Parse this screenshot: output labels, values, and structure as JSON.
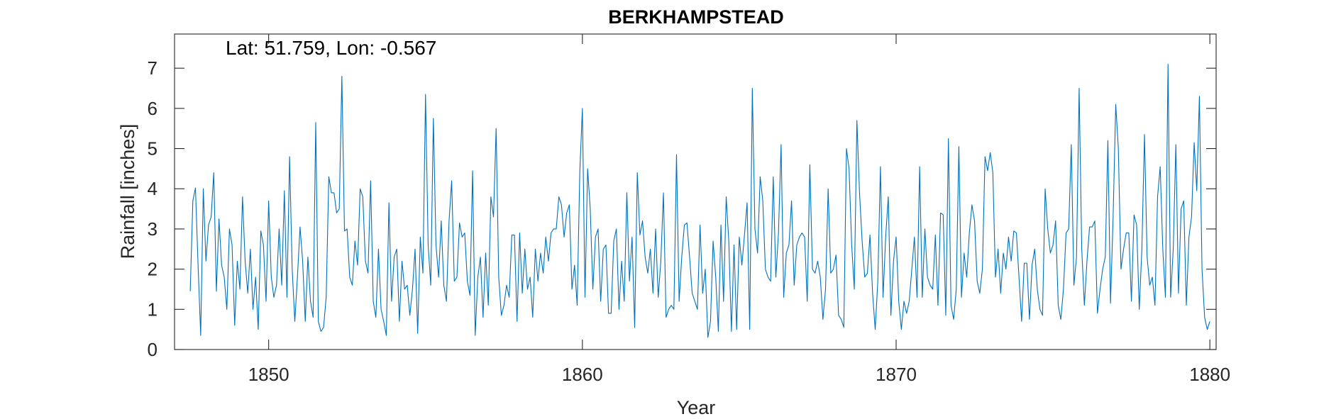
{
  "chart_data": {
    "type": "line",
    "title": "BERKHAMPSTEAD",
    "annotation": "Lat: 51.759, Lon: -0.567",
    "xlabel": "Year",
    "ylabel": "Rainfall [inches]",
    "xlim": [
      1847,
      1880.2
    ],
    "ylim": [
      0,
      7.85
    ],
    "xticks": [
      1850,
      1860,
      1870,
      1880
    ],
    "yticks": [
      0,
      1,
      2,
      3,
      4,
      5,
      6,
      7
    ],
    "grid": false,
    "legend": "none",
    "line_color": "#0072BD",
    "series": [
      {
        "x_start": 1847.5,
        "x_step": 0.0833333,
        "values": [
          1.45,
          3.7,
          4.02,
          2.1,
          0.35,
          4.0,
          2.2,
          3.1,
          3.3,
          4.4,
          1.45,
          3.25,
          2.1,
          1.8,
          1.0,
          3.0,
          2.6,
          0.6,
          2.2,
          1.5,
          3.8,
          2.2,
          1.4,
          2.5,
          1.0,
          1.8,
          0.5,
          2.95,
          2.6,
          1.2,
          3.7,
          1.8,
          1.3,
          1.6,
          3.0,
          1.6,
          3.95,
          1.3,
          4.8,
          2.0,
          0.7,
          1.8,
          3.05,
          2.2,
          0.7,
          2.3,
          1.2,
          0.8,
          5.65,
          0.7,
          0.45,
          0.55,
          1.3,
          4.3,
          3.9,
          3.9,
          3.4,
          3.5,
          6.8,
          2.95,
          3.0,
          1.8,
          1.6,
          2.7,
          2.1,
          4.0,
          3.8,
          2.2,
          1.9,
          4.2,
          1.2,
          0.8,
          2.5,
          1.0,
          0.7,
          0.35,
          3.65,
          1.2,
          2.3,
          2.5,
          0.7,
          2.2,
          1.5,
          1.6,
          0.85,
          1.5,
          2.5,
          0.4,
          2.8,
          1.9,
          6.35,
          2.6,
          1.6,
          5.75,
          2.6,
          1.8,
          3.2,
          1.6,
          1.2,
          3.2,
          4.2,
          1.7,
          1.8,
          3.15,
          2.8,
          2.9,
          1.7,
          1.35,
          4.45,
          0.35,
          1.8,
          2.3,
          0.8,
          2.4,
          1.1,
          3.8,
          3.3,
          5.5,
          1.8,
          0.85,
          1.1,
          1.6,
          1.3,
          2.85,
          2.85,
          0.7,
          2.9,
          1.4,
          2.5,
          1.5,
          1.8,
          0.8,
          2.5,
          1.7,
          2.4,
          1.9,
          2.8,
          2.2,
          2.9,
          3.0,
          3.0,
          3.8,
          3.6,
          2.8,
          3.4,
          3.6,
          1.5,
          2.1,
          1.1,
          4.4,
          6.0,
          1.3,
          4.5,
          3.5,
          1.5,
          2.8,
          3.0,
          1.2,
          2.5,
          2.6,
          0.9,
          0.9,
          2.7,
          3.0,
          1.0,
          2.2,
          1.2,
          3.9,
          1.7,
          2.8,
          0.55,
          4.4,
          2.85,
          3.2,
          2.3,
          1.9,
          2.5,
          1.4,
          3.0,
          1.3,
          2.2,
          3.9,
          0.8,
          1.0,
          1.1,
          1.0,
          4.85,
          1.2,
          2.3,
          3.1,
          3.15,
          2.3,
          1.4,
          1.2,
          1.0,
          3.1,
          1.4,
          2.0,
          0.3,
          0.7,
          2.7,
          1.8,
          0.45,
          3.1,
          1.2,
          3.8,
          2.7,
          0.45,
          2.6,
          0.5,
          2.8,
          2.1,
          2.85,
          3.65,
          0.5,
          6.5,
          3.0,
          2.4,
          4.3,
          3.7,
          2.0,
          1.8,
          1.7,
          4.3,
          1.8,
          2.9,
          5.1,
          1.3,
          2.4,
          2.6,
          3.7,
          1.6,
          2.6,
          2.8,
          2.9,
          2.8,
          1.2,
          4.6,
          2.0,
          1.9,
          2.2,
          1.8,
          0.75,
          1.5,
          4.0,
          1.9,
          2.0,
          2.35,
          0.85,
          0.75,
          0.55,
          5.0,
          4.5,
          2.6,
          1.5,
          5.7,
          3.9,
          2.7,
          1.8,
          1.9,
          2.85,
          1.4,
          0.5,
          1.7,
          4.55,
          1.3,
          2.8,
          3.8,
          0.85,
          2.2,
          2.8,
          1.2,
          0.5,
          1.2,
          0.9,
          1.2,
          2.0,
          2.8,
          1.3,
          4.55,
          1.3,
          3.0,
          1.8,
          1.6,
          1.5,
          2.85,
          1.1,
          3.4,
          3.35,
          0.85,
          5.25,
          1.1,
          0.75,
          1.5,
          5.05,
          1.3,
          2.4,
          1.8,
          2.9,
          3.6,
          3.2,
          1.7,
          1.4,
          2.0,
          4.8,
          4.45,
          4.9,
          4.4,
          1.8,
          2.5,
          1.4,
          2.4,
          2.0,
          2.8,
          2.2,
          2.95,
          2.9,
          1.8,
          0.7,
          2.15,
          2.15,
          0.75,
          2.1,
          2.5,
          1.5,
          1.0,
          0.85,
          4.0,
          3.0,
          2.4,
          2.6,
          3.2,
          1.1,
          0.75,
          1.5,
          2.9,
          3.0,
          5.1,
          1.6,
          2.3,
          6.5,
          2.5,
          1.1,
          2.2,
          3.05,
          3.05,
          3.2,
          0.9,
          1.5,
          2.0,
          2.3,
          5.2,
          1.15,
          3.3,
          6.1,
          5.0,
          2.0,
          2.5,
          2.9,
          2.9,
          1.2,
          3.35,
          3.1,
          1.0,
          2.5,
          5.35,
          2.3,
          1.6,
          1.8,
          1.1,
          3.8,
          4.55,
          2.5,
          1.3,
          7.1,
          1.3,
          2.5,
          5.1,
          1.4,
          3.5,
          3.7,
          1.1,
          2.8,
          3.3,
          5.15,
          3.95,
          6.3,
          2.0,
          0.8,
          0.5,
          0.7
        ]
      }
    ]
  }
}
